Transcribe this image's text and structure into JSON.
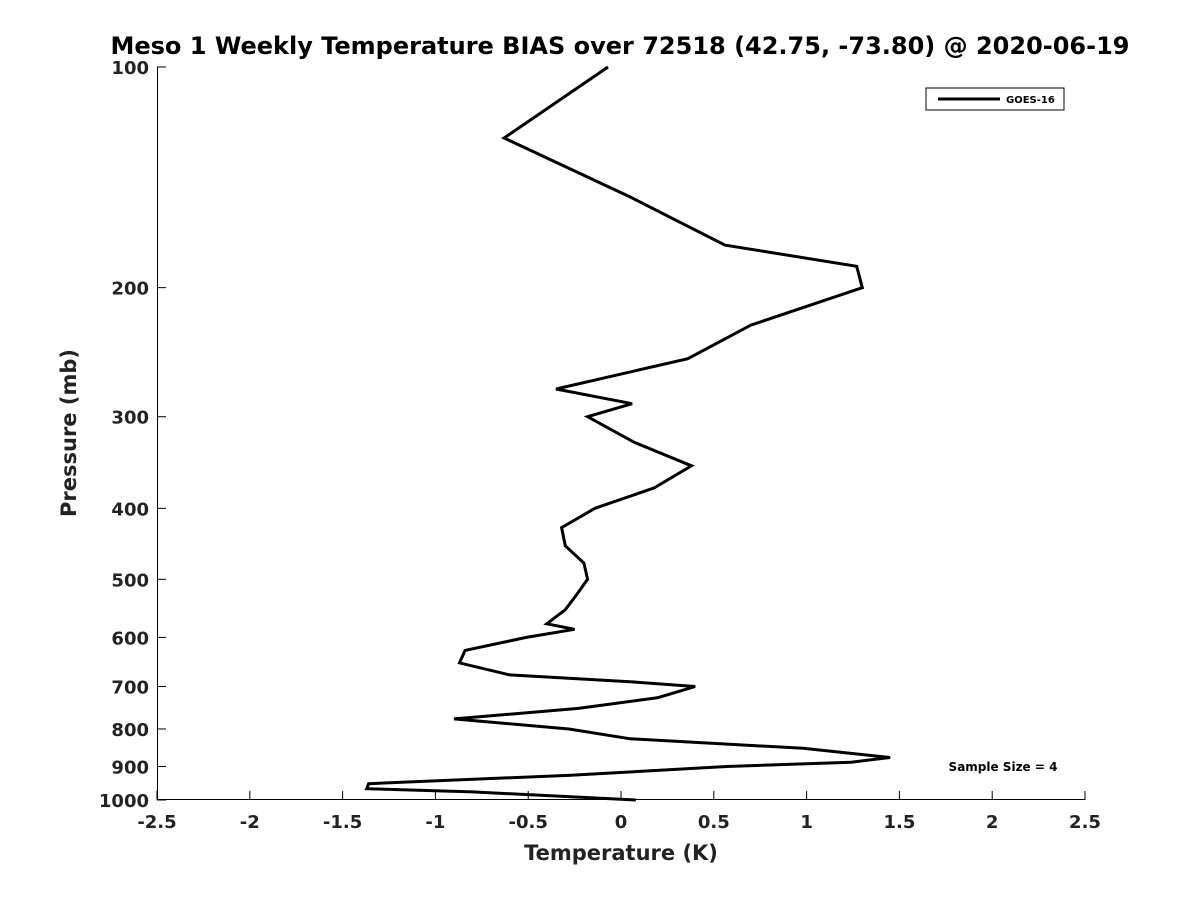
{
  "chart_data": {
    "type": "line",
    "title": "Meso 1 Weekly Temperature BIAS over 72518 (42.75, -73.80) @ 2020-06-19",
    "xlabel": "Temperature (K)",
    "ylabel": "Pressure (mb)",
    "xlim": [
      -2.5,
      2.5
    ],
    "ylim": [
      1000,
      100
    ],
    "yscale": "log",
    "y_inverted": true,
    "grid": false,
    "legend_position": "top-right",
    "xticks": [
      -2.5,
      -2,
      -1.5,
      -1,
      -0.5,
      0,
      0.5,
      1,
      1.5,
      2,
      2.5
    ],
    "xtick_labels": [
      "-2.5",
      "-2",
      "-1.5",
      "-1",
      "-0.5",
      "0",
      "0.5",
      "1",
      "1.5",
      "2",
      "2.5"
    ],
    "yticks": [
      100,
      200,
      300,
      400,
      500,
      600,
      700,
      800,
      900,
      1000
    ],
    "ytick_labels": [
      "100",
      "200",
      "300",
      "400",
      "500",
      "600",
      "700",
      "800",
      "900",
      "1000"
    ],
    "series": [
      {
        "name": "GOES-16",
        "color": "#000000",
        "points": [
          {
            "x": -0.07,
            "y": 100
          },
          {
            "x": -0.63,
            "y": 125
          },
          {
            "x": 0.04,
            "y": 150
          },
          {
            "x": 0.56,
            "y": 175
          },
          {
            "x": 1.27,
            "y": 187
          },
          {
            "x": 1.3,
            "y": 200
          },
          {
            "x": 0.7,
            "y": 225
          },
          {
            "x": 0.36,
            "y": 250
          },
          {
            "x": -0.35,
            "y": 275
          },
          {
            "x": 0.06,
            "y": 288
          },
          {
            "x": -0.18,
            "y": 300
          },
          {
            "x": 0.07,
            "y": 325
          },
          {
            "x": 0.38,
            "y": 350
          },
          {
            "x": 0.18,
            "y": 375
          },
          {
            "x": -0.14,
            "y": 400
          },
          {
            "x": -0.32,
            "y": 425
          },
          {
            "x": -0.3,
            "y": 450
          },
          {
            "x": -0.2,
            "y": 475
          },
          {
            "x": -0.18,
            "y": 500
          },
          {
            "x": -0.24,
            "y": 525
          },
          {
            "x": -0.3,
            "y": 550
          },
          {
            "x": -0.4,
            "y": 575
          },
          {
            "x": -0.25,
            "y": 585
          },
          {
            "x": -0.51,
            "y": 600
          },
          {
            "x": -0.84,
            "y": 625
          },
          {
            "x": -0.87,
            "y": 650
          },
          {
            "x": -0.6,
            "y": 675
          },
          {
            "x": 0.06,
            "y": 690
          },
          {
            "x": 0.4,
            "y": 700
          },
          {
            "x": 0.2,
            "y": 725
          },
          {
            "x": -0.23,
            "y": 750
          },
          {
            "x": -0.9,
            "y": 775
          },
          {
            "x": -0.28,
            "y": 800
          },
          {
            "x": 0.05,
            "y": 825
          },
          {
            "x": 0.98,
            "y": 850
          },
          {
            "x": 1.45,
            "y": 875
          },
          {
            "x": 1.24,
            "y": 888
          },
          {
            "x": 0.57,
            "y": 900
          },
          {
            "x": -0.27,
            "y": 925
          },
          {
            "x": -1.36,
            "y": 950
          },
          {
            "x": -1.37,
            "y": 965
          },
          {
            "x": -0.8,
            "y": 975
          },
          {
            "x": 0.08,
            "y": 1000
          }
        ]
      }
    ],
    "annotations": [
      {
        "text": "Sample Size = 4",
        "position": "bottom-right"
      }
    ]
  }
}
